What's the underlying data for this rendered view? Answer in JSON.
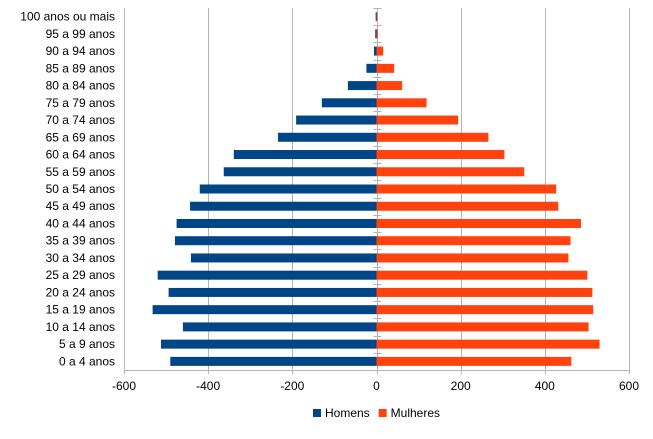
{
  "chart_data": {
    "type": "bar",
    "orientation": "horizontal",
    "title": "",
    "xlabel": "",
    "ylabel": "",
    "categories": [
      "0 a 4 anos",
      "5 a 9 anos",
      "10 a 14 anos",
      "15 a 19 anos",
      "20 a 24 anos",
      "25 a 29 anos",
      "30 a 34 anos",
      "35 a 39 anos",
      "40 a 44 anos",
      "45 a 49 anos",
      "50 a 54 anos",
      "55 a 59 anos",
      "60 a 64 anos",
      "65 a 69 anos",
      "70 a 74 anos",
      "75 a 79 anos",
      "80 a 84 anos",
      "85 a 89 anos",
      "90 a 94 anos",
      "95 a 99 anos",
      "100 anos ou mais"
    ],
    "series": [
      {
        "name": "Homens",
        "color": "#004586",
        "values": [
          -490,
          -512,
          -460,
          -532,
          -494,
          -520,
          -441,
          -479,
          -475,
          -443,
          -420,
          -363,
          -339,
          -234,
          -191,
          -130,
          -68,
          -24,
          -6,
          -3,
          -2
        ]
      },
      {
        "name": "Mulheres",
        "color": "#ff420e",
        "values": [
          463,
          530,
          504,
          515,
          513,
          501,
          456,
          461,
          486,
          432,
          427,
          351,
          304,
          266,
          194,
          119,
          61,
          42,
          16,
          3,
          2
        ]
      }
    ],
    "xlim": [
      -600,
      600
    ],
    "xticks": [
      "-600",
      "-400",
      "-200",
      "0",
      "200",
      "400",
      "600"
    ],
    "grid": true,
    "legend_position": "bottom"
  }
}
